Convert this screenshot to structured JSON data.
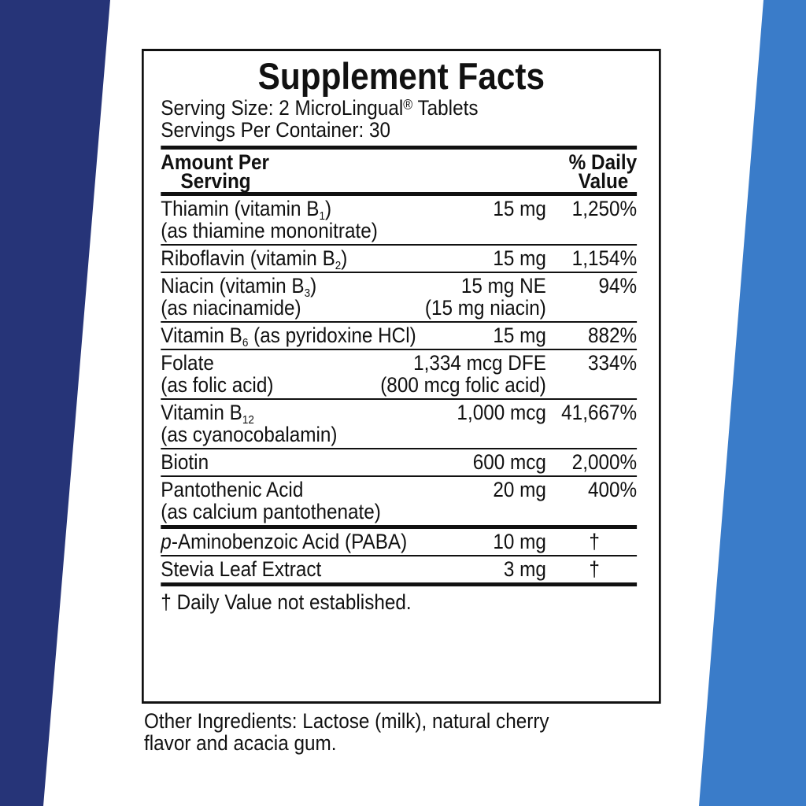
{
  "title": "Supplement Facts",
  "serving_size": {
    "text": "Serving Size: 2 MicroLingual",
    "sup": "®",
    "end": " Tablets"
  },
  "servings_per_container": "Servings Per Container: 30",
  "header": {
    "amount_lines": [
      "Amount Per",
      "Serving"
    ],
    "dv_lines": [
      "% Daily",
      "Value"
    ]
  },
  "rows": [
    {
      "name": "Thiamin (vitamin B",
      "sub": "1",
      "name_end": ")",
      "note": "(as thiamine mononitrate)",
      "amount": [
        "15 mg"
      ],
      "dv": "1,250%"
    },
    {
      "name": "Riboflavin (vitamin B",
      "sub": "2",
      "name_end": ")",
      "amount": [
        "15 mg"
      ],
      "dv": "1,154%"
    },
    {
      "name": "Niacin (vitamin B",
      "sub": "3",
      "name_end": ")",
      "note": "(as niacinamide)",
      "amount": [
        "15 mg NE",
        "(15 mg niacin)"
      ],
      "dv": "94%"
    },
    {
      "name": "Vitamin B",
      "sub": "6",
      "name_end": " (as pyridoxine  HCl)",
      "amount": [
        "15 mg"
      ],
      "dv": "882%"
    },
    {
      "name": "Folate",
      "note": "(as folic acid)",
      "amount": [
        "1,334 mcg DFE",
        "(800 mcg folic acid)"
      ],
      "dv": "334%"
    },
    {
      "name": "Vitamin B",
      "sub": "12",
      "note": "(as cyanocobalamin)",
      "amount": [
        "1,000 mcg"
      ],
      "dv": "41,667%"
    },
    {
      "name": "Biotin",
      "amount": [
        "600 mcg"
      ],
      "dv": "2,000%"
    },
    {
      "name": "Pantothenic Acid",
      "note": "(as calcium pantothenate)",
      "amount": [
        "20 mg"
      ],
      "dv": "400%"
    }
  ],
  "other_rows": [
    {
      "prefix": "p",
      "name": "-Aminobenzoic Acid (PABA)",
      "amount": [
        "10 mg"
      ],
      "dv": "†"
    },
    {
      "name": "Stevia Leaf Extract",
      "amount": [
        "3 mg"
      ],
      "dv": "†"
    }
  ],
  "footnote": "† Daily Value not established.",
  "other_ingredients": "Other Ingredients: Lactose (milk), natural cherry flavor and acacia gum."
}
